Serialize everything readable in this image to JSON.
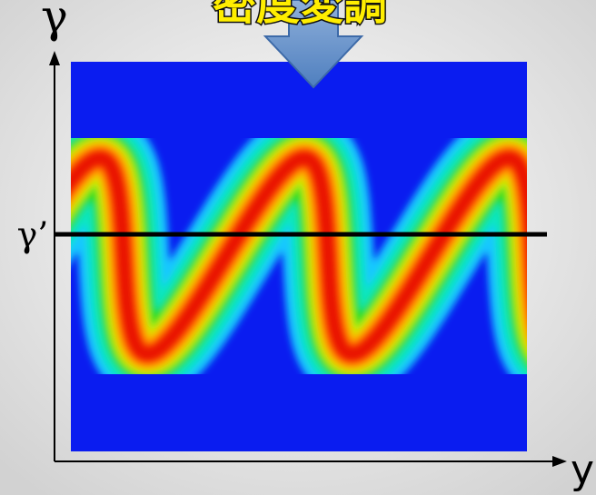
{
  "title": "密度変調",
  "y_axis_label": "γ",
  "reference_label": "γ’",
  "x_axis_label": "y"
}
